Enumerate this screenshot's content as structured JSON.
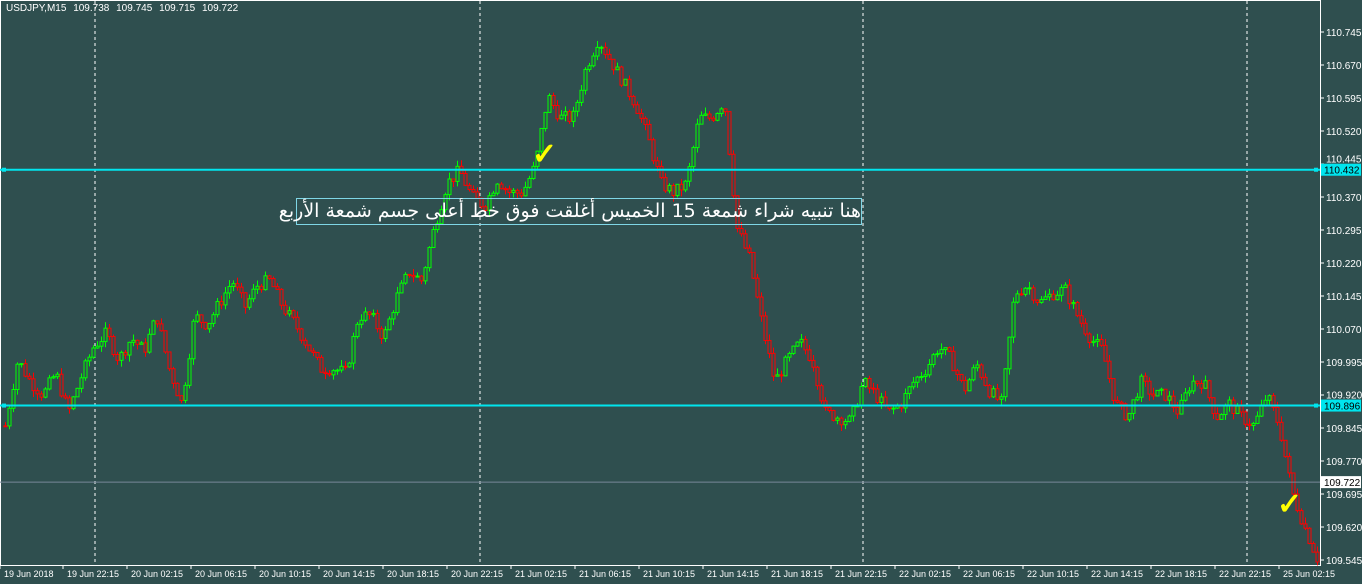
{
  "header": {
    "symbol": "USDJPY,M15",
    "open": "109.738",
    "high": "109.745",
    "low": "109.715",
    "close": "109.722"
  },
  "annotation": {
    "text": "هنا تنبيه شراء شمعة 15 الخميس أغلقت فوق خط أعلى جسم شمعة الأربع",
    "check_icon": "✓"
  },
  "colors": {
    "background": "#2f4f4f",
    "bull": "#00ff00",
    "bear": "#ff0000",
    "level_line": "#00e5ee",
    "grid": "#ffffff",
    "check": "#ffff00"
  },
  "chart_data": {
    "type": "candlestick",
    "symbol": "USDJPY",
    "timeframe": "M15",
    "ylim": [
      109.545,
      110.745
    ],
    "y_ticks": [
      "110.745",
      "110.670",
      "110.595",
      "110.520",
      "110.445",
      "110.370",
      "110.295",
      "110.220",
      "110.145",
      "110.070",
      "109.995",
      "109.920",
      "109.845",
      "109.770",
      "109.695",
      "109.620",
      "109.545"
    ],
    "x_ticks": [
      "19 Jun 2018",
      "19 Jun 22:15",
      "20 Jun 02:15",
      "20 Jun 06:15",
      "20 Jun 10:15",
      "20 Jun 14:15",
      "20 Jun 18:15",
      "20 Jun 22:15",
      "21 Jun 02:15",
      "21 Jun 06:15",
      "21 Jun 10:15",
      "21 Jun 14:15",
      "21 Jun 18:15",
      "21 Jun 22:15",
      "22 Jun 02:15",
      "22 Jun 06:15",
      "22 Jun 10:15",
      "22 Jun 14:15",
      "22 Jun 18:15",
      "22 Jun 22:15",
      "25 Jun 02:15"
    ],
    "price_path": [
      109.85,
      110.0,
      109.95,
      109.92,
      109.97,
      109.88,
      109.96,
      110.03,
      110.06,
      110.0,
      110.05,
      110.02,
      110.1,
      109.98,
      109.9,
      110.1,
      110.08,
      110.13,
      110.18,
      110.12,
      110.17,
      110.18,
      110.12,
      110.08,
      110.03,
      109.98,
      109.98,
      109.97,
      110.1,
      110.1,
      110.05,
      110.14,
      110.2,
      110.18,
      110.3,
      110.4,
      110.43,
      110.37,
      110.35,
      110.41,
      110.38,
      110.38,
      110.44,
      110.6,
      110.55,
      110.55,
      110.66,
      110.73,
      110.68,
      110.63,
      110.58,
      110.5,
      110.4,
      110.38,
      110.4,
      110.55,
      110.55,
      110.59,
      110.3,
      110.23,
      110.08,
      109.95,
      110.0,
      110.04,
      110.0,
      109.88,
      109.87,
      109.86,
      109.95,
      109.92,
      109.88,
      109.9,
      109.95,
      109.98,
      110.03,
      110.0,
      109.93,
      109.99,
      109.93,
      109.9,
      110.15,
      110.17,
      110.13,
      110.15,
      110.16,
      110.1,
      110.05,
      110.02,
      109.9,
      109.87,
      109.95,
      109.92,
      109.92,
      109.88,
      109.95,
      109.95,
      109.87,
      109.9,
      109.87,
      109.85,
      109.92,
      109.85,
      109.7,
      109.62,
      109.55
    ],
    "levels": [
      {
        "price": 110.432,
        "label": "110.432"
      },
      {
        "price": 109.896,
        "label": "109.896"
      }
    ],
    "current_price": {
      "price": 109.722,
      "label": "109.722"
    }
  }
}
